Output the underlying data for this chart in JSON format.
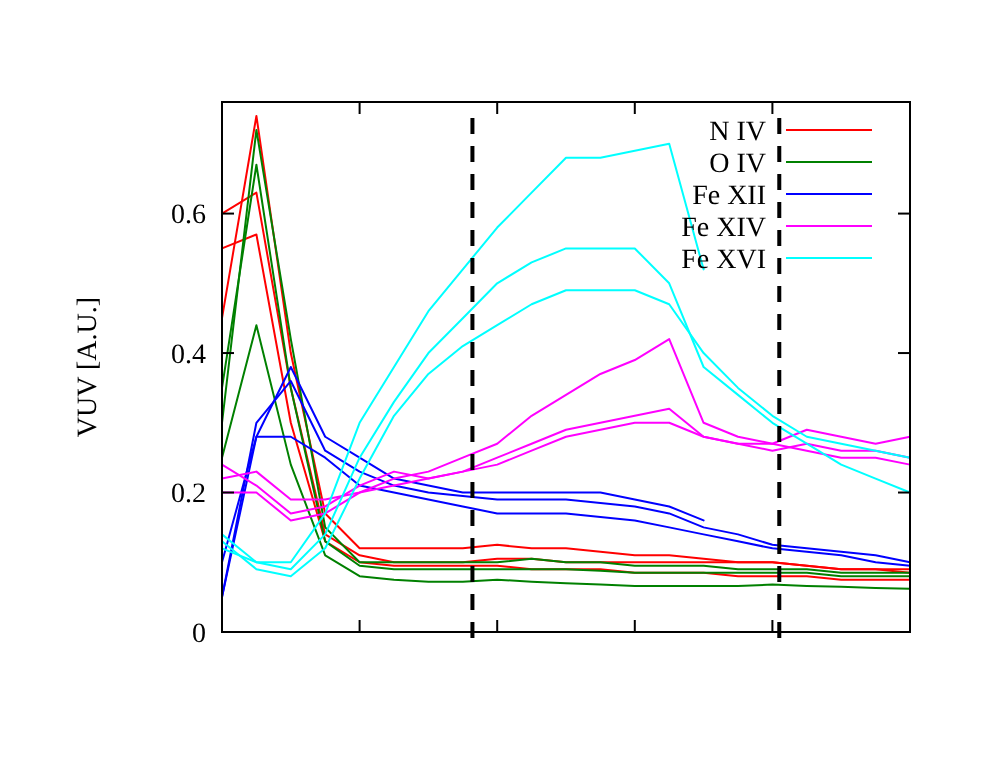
{
  "chart_data": {
    "type": "line",
    "ylabel": "VUV [A.U.]",
    "categories": [
      null,
      null,
      null,
      null,
      null,
      null,
      null,
      null,
      null,
      null,
      null,
      null,
      null,
      null,
      null,
      null,
      null,
      null,
      null,
      null,
      null
    ],
    "ylim": [
      0,
      0.76
    ],
    "yticks": [
      {
        "value": 0,
        "label": "0"
      },
      {
        "value": 0.2,
        "label": "0.2"
      },
      {
        "value": 0.4,
        "label": "0.4"
      },
      {
        "value": 0.6,
        "label": "0.6"
      }
    ],
    "tick_labels": "y",
    "legend": "top right",
    "series": [
      {
        "name": "N IV",
        "color": "#ff0000",
        "values": [
          0.45,
          0.74,
          0.4,
          0.17,
          0.12,
          0.12,
          0.12,
          0.12,
          0.125,
          0.12,
          0.12,
          0.115,
          0.11,
          0.11,
          0.105,
          0.1,
          0.1,
          0.095,
          0.09,
          0.09,
          0.085
        ]
      },
      {
        "color": "#ff0000",
        "values": [
          0.6,
          0.63,
          0.35,
          0.14,
          0.11,
          0.1,
          0.1,
          0.1,
          0.105,
          0.105,
          0.1,
          0.1,
          0.1,
          0.1,
          0.1,
          0.1,
          0.1,
          0.095,
          0.09,
          0.09,
          0.09
        ]
      },
      {
        "color": "#ff0000",
        "values": [
          0.55,
          0.57,
          0.3,
          0.13,
          0.1,
          0.095,
          0.095,
          0.095,
          0.095,
          0.09,
          0.09,
          0.09,
          0.085,
          0.085,
          0.085,
          0.08,
          0.08,
          0.08,
          0.075,
          0.075,
          0.075
        ]
      },
      {
        "name": "O IV",
        "color": "#008000",
        "values": [
          0.3,
          0.72,
          0.42,
          0.15,
          0.1,
          0.1,
          0.1,
          0.1,
          0.1,
          0.105,
          0.1,
          0.1,
          0.095,
          0.095,
          0.095,
          0.09,
          0.09,
          0.09,
          0.085,
          0.085,
          0.085
        ]
      },
      {
        "color": "#008000",
        "values": [
          0.35,
          0.67,
          0.35,
          0.13,
          0.095,
          0.09,
          0.09,
          0.09,
          0.09,
          0.09,
          0.09,
          0.088,
          0.085,
          0.085,
          0.085,
          0.085,
          0.085,
          0.085,
          0.08,
          0.08,
          0.08
        ]
      },
      {
        "color": "#008000",
        "values": [
          0.25,
          0.44,
          0.24,
          0.11,
          0.08,
          0.075,
          0.072,
          0.072,
          0.075,
          0.072,
          0.07,
          0.068,
          0.066,
          0.066,
          0.066,
          0.066,
          0.068,
          0.066,
          0.065,
          0.063,
          0.062
        ]
      },
      {
        "name": "Fe XII",
        "color": "#0000ff",
        "values": [
          0.05,
          0.28,
          0.38,
          0.28,
          0.25,
          0.22,
          0.21,
          0.2,
          0.2,
          0.2,
          0.2,
          0.2,
          0.19,
          0.18,
          0.16,
          null,
          null,
          null,
          null,
          null,
          null
        ]
      },
      {
        "color": "#0000ff",
        "values": [
          0.05,
          0.3,
          0.36,
          0.26,
          0.23,
          0.21,
          0.2,
          0.195,
          0.19,
          0.19,
          0.19,
          0.185,
          0.18,
          0.17,
          0.15,
          0.14,
          0.125,
          0.12,
          0.115,
          0.11,
          0.1
        ]
      },
      {
        "color": "#0000ff",
        "values": [
          0.1,
          0.28,
          0.28,
          0.25,
          0.21,
          0.2,
          0.19,
          0.18,
          0.17,
          0.17,
          0.17,
          0.165,
          0.16,
          0.15,
          0.14,
          0.13,
          0.12,
          0.115,
          0.11,
          0.1,
          0.095
        ]
      },
      {
        "name": "Fe XIV",
        "color": "#ff00ff",
        "values": [
          0.22,
          0.23,
          0.19,
          0.19,
          0.2,
          0.22,
          0.23,
          0.25,
          0.27,
          0.31,
          0.34,
          0.37,
          0.39,
          0.42,
          0.3,
          0.28,
          0.27,
          0.29,
          0.28,
          0.27,
          0.28
        ]
      },
      {
        "color": "#ff00ff",
        "values": [
          0.24,
          0.21,
          0.17,
          0.18,
          0.21,
          0.23,
          0.22,
          0.23,
          0.25,
          0.27,
          0.29,
          0.3,
          0.31,
          0.32,
          0.28,
          0.27,
          0.26,
          0.27,
          0.26,
          0.26,
          0.25
        ]
      },
      {
        "color": "#ff00ff",
        "values": [
          0.2,
          0.2,
          0.16,
          0.17,
          0.2,
          0.21,
          0.22,
          0.23,
          0.24,
          0.26,
          0.28,
          0.29,
          0.3,
          0.3,
          0.28,
          0.27,
          0.27,
          0.26,
          0.25,
          0.25,
          0.24
        ]
      },
      {
        "name": "Fe XVI",
        "color": "#00ffff",
        "values": [
          0.14,
          0.1,
          0.1,
          0.17,
          0.3,
          0.38,
          0.46,
          0.52,
          0.58,
          0.63,
          0.68,
          0.68,
          0.69,
          0.7,
          0.52,
          null,
          null,
          null,
          null,
          null,
          null
        ]
      },
      {
        "color": "#00ffff",
        "values": [
          0.12,
          0.1,
          0.09,
          0.14,
          0.25,
          0.33,
          0.4,
          0.45,
          0.5,
          0.53,
          0.55,
          0.55,
          0.55,
          0.5,
          0.38,
          0.34,
          0.3,
          0.27,
          0.24,
          0.22,
          0.2
        ]
      },
      {
        "color": "#00ffff",
        "values": [
          0.13,
          0.09,
          0.08,
          0.12,
          0.22,
          0.31,
          0.37,
          0.41,
          0.44,
          0.47,
          0.49,
          0.49,
          0.49,
          0.47,
          0.4,
          0.35,
          0.31,
          0.28,
          0.27,
          0.26,
          0.25
        ]
      }
    ]
  }
}
